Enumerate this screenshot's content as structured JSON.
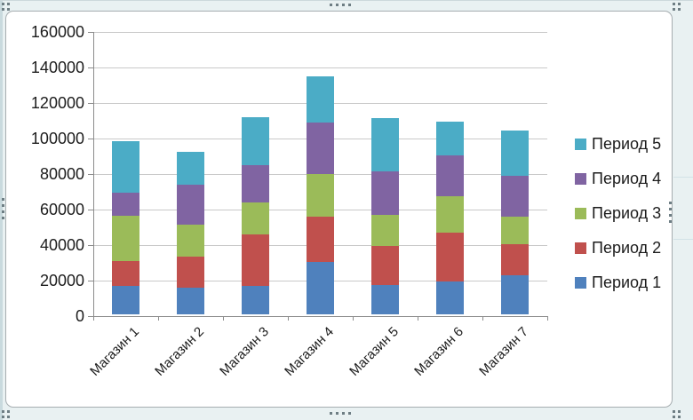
{
  "chart_data": {
    "type": "bar",
    "stacked": true,
    "title": "",
    "categories": [
      "Магазин 1",
      "Магазин 2",
      "Магазин 3",
      "Магазин 4",
      "Магазин 5",
      "Магазин 6",
      "Магазин 7"
    ],
    "series": [
      {
        "name": "Период 1",
        "color": "#4F81BD",
        "values": [
          16000,
          15000,
          16000,
          29500,
          16500,
          18500,
          22000
        ]
      },
      {
        "name": "Период 2",
        "color": "#C0504D",
        "values": [
          14000,
          17500,
          29000,
          25500,
          22000,
          27500,
          17500
        ]
      },
      {
        "name": "Период 3",
        "color": "#9BBB59",
        "values": [
          25500,
          18000,
          18000,
          24000,
          17500,
          20500,
          15500
        ]
      },
      {
        "name": "Период 4",
        "color": "#8064A2",
        "values": [
          13000,
          22500,
          21000,
          29000,
          24500,
          23000,
          23000
        ]
      },
      {
        "name": "Период 5",
        "color": "#4BACC6",
        "values": [
          29000,
          18500,
          27000,
          26000,
          30000,
          19000,
          25500
        ]
      }
    ],
    "y_axis": {
      "min": 0,
      "max": 160000,
      "step": 20000,
      "tick_labels": [
        "0",
        "20000",
        "40000",
        "60000",
        "80000",
        "100000",
        "120000",
        "140000",
        "160000"
      ]
    },
    "x_axis": {
      "label_rotation_deg": -45
    },
    "legend": {
      "position": "right",
      "entries": [
        "Период 5",
        "Период 4",
        "Период 3",
        "Период 2",
        "Период 1"
      ]
    },
    "grid": true,
    "colors": {
      "gridline": "#C9C9C9",
      "axis": "#8C8C8C",
      "text": "#1C1C1C",
      "plot_bg": "#FFFFFF",
      "outer_bg": "#E9F1F2",
      "chart_border": "#A6ADB0",
      "handle_dot": "#6E7E84"
    }
  }
}
